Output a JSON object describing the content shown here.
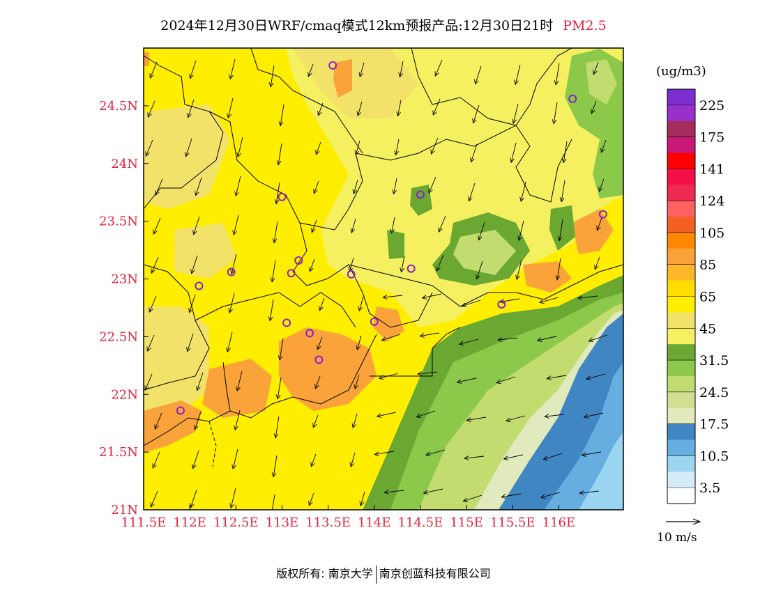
{
  "title": {
    "main": "2024年12月30日WRF/cmaq模式12km预报产品:12月30日21时",
    "variable": "PM2.5"
  },
  "chart_data": {
    "type": "heatmap",
    "title": "2024年12月30日WRF/cmaq模式12km预报产品:12月30日21时 PM2.5",
    "xlim": [
      111.5,
      116.7
    ],
    "ylim": [
      21.0,
      25.0
    ],
    "x_ticks": [
      111.5,
      112,
      112.5,
      113,
      113.5,
      114,
      114.5,
      115,
      115.5,
      116
    ],
    "x_tick_labels": [
      "111.5E",
      "112E",
      "112.5E",
      "113E",
      "113.5E",
      "114E",
      "114.5E",
      "115E",
      "115.5E",
      "116E"
    ],
    "y_ticks": [
      21,
      21.5,
      22,
      22.5,
      23,
      23.5,
      24,
      24.5
    ],
    "y_tick_labels": [
      "21N",
      "21.5N",
      "22N",
      "22.5N",
      "23N",
      "23.5N",
      "24N",
      "24.5N"
    ],
    "colorbar": {
      "unit": "(ug/m3)",
      "labels": [
        "225",
        "175",
        "141",
        "124",
        "105",
        "85",
        "65",
        "45",
        "31.5",
        "24.5",
        "17.5",
        "10.5",
        "3.5"
      ],
      "colors": [
        "#7b2fd3",
        "#9a30cc",
        "#a52c5a",
        "#c8187a",
        "#ff0000",
        "#f50f48",
        "#ee2a50",
        "#ff6060",
        "#f26022",
        "#ff8800",
        "#f9a33a",
        "#ffb728",
        "#ffdd00",
        "#ffee00",
        "#f2e26a",
        "#f4f060",
        "#6aa832",
        "#8cc84a",
        "#c2dc70",
        "#d0e090",
        "#e0eabc",
        "#3f86c2",
        "#66aee0",
        "#9ad6f2",
        "#d4ecf8",
        "#ffffff"
      ]
    },
    "wind_scale_label": "10 m/s",
    "stations": [
      [
        113.55,
        24.85
      ],
      [
        116.15,
        24.56
      ],
      [
        114.5,
        23.73
      ],
      [
        113.0,
        23.71
      ],
      [
        116.48,
        23.56
      ],
      [
        113.18,
        23.16
      ],
      [
        112.45,
        23.06
      ],
      [
        113.1,
        23.05
      ],
      [
        113.75,
        23.04
      ],
      [
        114.4,
        23.09
      ],
      [
        112.1,
        22.94
      ],
      [
        115.38,
        22.78
      ],
      [
        114.0,
        22.63
      ],
      [
        113.05,
        22.62
      ],
      [
        113.3,
        22.53
      ],
      [
        113.4,
        22.3
      ],
      [
        111.9,
        21.86
      ]
    ]
  },
  "footer": {
    "left": "版权所有: 南京大学",
    "right": "南京创蓝科技有限公司"
  }
}
